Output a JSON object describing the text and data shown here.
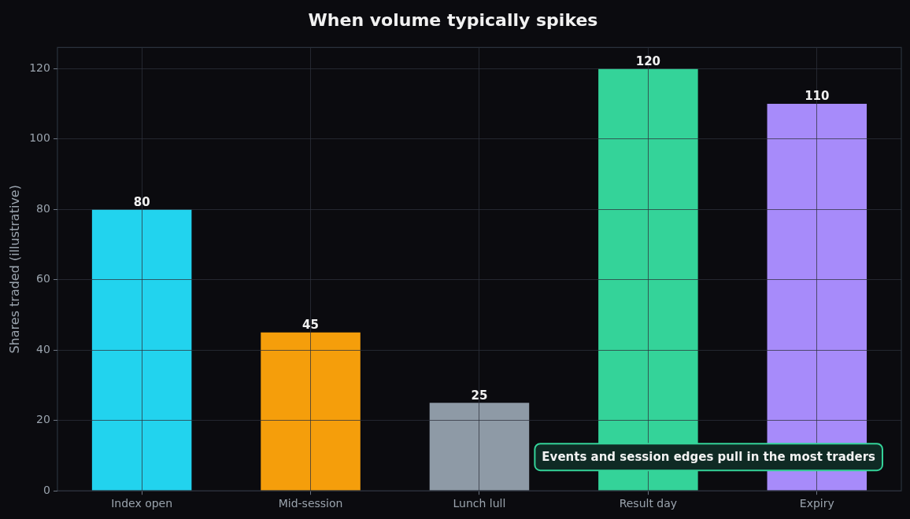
{
  "chart_data": {
    "type": "bar",
    "title": "When volume typically spikes",
    "ylabel": "Shares traded (illustrative)",
    "categories": [
      "Index open",
      "Mid-session",
      "Lunch lull",
      "Result day",
      "Expiry"
    ],
    "values": [
      80,
      45,
      25,
      120,
      110
    ],
    "colors": [
      "#22d3ee",
      "#f59e0b",
      "#8e9aa6",
      "#34d399",
      "#a78bfa"
    ],
    "ylim": [
      0,
      126
    ],
    "yticks": [
      0,
      20,
      40,
      60,
      80,
      100,
      120
    ],
    "grid": true,
    "data_labels": true,
    "annotations": [
      "Events and session edges pull in the most traders"
    ]
  }
}
